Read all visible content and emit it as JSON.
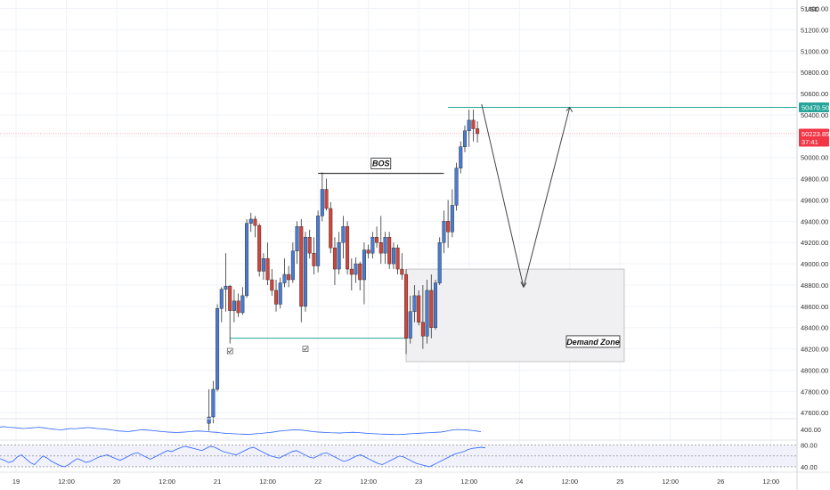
{
  "currency": "USD",
  "chart_data": {
    "type": "candlestick",
    "price_ticks": [
      47600,
      47800,
      48000,
      48200,
      48400,
      48600,
      48800,
      49000,
      49200,
      49400,
      49600,
      49800,
      50000,
      50200,
      50400,
      50600,
      50800,
      51000,
      51200,
      51400
    ],
    "price_tick_labels": [
      "47600.00",
      "47800.00",
      "48000.00",
      "48200.00",
      "48400.00",
      "48600.00",
      "48800.00",
      "49000.00",
      "49200.00",
      "49400.00",
      "49600.00",
      "49800.00",
      "50000.00",
      "50200.00",
      "50400.00",
      "50600.00",
      "50800.00",
      "51000.00",
      "51200.00",
      "51400.00"
    ],
    "ylim": [
      47560,
      51480
    ],
    "time_ticks": [
      {
        "label": "19",
        "t": 0
      },
      {
        "label": "12:00",
        "t": 6
      },
      {
        "label": "20",
        "t": 12
      },
      {
        "label": "12:00",
        "t": 18
      },
      {
        "label": "21",
        "t": 24
      },
      {
        "label": "12:00",
        "t": 30
      },
      {
        "label": "22",
        "t": 36
      },
      {
        "label": "12:00",
        "t": 42
      },
      {
        "label": "23",
        "t": 48
      },
      {
        "label": "12:00",
        "t": 54
      },
      {
        "label": "24",
        "t": 60
      },
      {
        "label": "12:00",
        "t": 66
      },
      {
        "label": "25",
        "t": 72
      },
      {
        "label": "12:00",
        "t": 78
      },
      {
        "label": "26",
        "t": 84
      },
      {
        "label": "12:00",
        "t": 90
      }
    ],
    "candles": [
      [
        23.0,
        47500,
        47820,
        47430,
        47560
      ],
      [
        23.5,
        47560,
        47900,
        47500,
        47820
      ],
      [
        24.0,
        47820,
        48620,
        47800,
        48580
      ],
      [
        24.5,
        48580,
        48780,
        48450,
        48760
      ],
      [
        25.0,
        48760,
        49100,
        48550,
        48790
      ],
      [
        25.5,
        48790,
        48800,
        48250,
        48560
      ],
      [
        26.0,
        48560,
        48760,
        48450,
        48650
      ],
      [
        26.5,
        48650,
        48720,
        48500,
        48540
      ],
      [
        27.0,
        48540,
        48780,
        48520,
        48700
      ],
      [
        27.5,
        48700,
        49420,
        48680,
        49380
      ],
      [
        28.0,
        49380,
        49480,
        49300,
        49420
      ],
      [
        28.5,
        49420,
        49450,
        49250,
        49360
      ],
      [
        29.0,
        49360,
        49380,
        48880,
        48930
      ],
      [
        29.5,
        48930,
        49100,
        48850,
        49050
      ],
      [
        30.0,
        49050,
        49200,
        48800,
        48850
      ],
      [
        30.5,
        48850,
        48950,
        48700,
        48750
      ],
      [
        31.0,
        48750,
        48850,
        48550,
        48620
      ],
      [
        31.5,
        48620,
        48870,
        48580,
        48820
      ],
      [
        32.0,
        48820,
        49050,
        48780,
        48900
      ],
      [
        32.5,
        48900,
        48980,
        48780,
        48850
      ],
      [
        33.0,
        48850,
        49200,
        48820,
        49120
      ],
      [
        33.5,
        49120,
        49400,
        49000,
        49350
      ],
      [
        34.0,
        49350,
        49420,
        48450,
        48600
      ],
      [
        34.5,
        48600,
        49300,
        48550,
        49250
      ],
      [
        35.0,
        49250,
        49320,
        49050,
        49100
      ],
      [
        35.5,
        49100,
        49250,
        48900,
        48980
      ],
      [
        36.0,
        48980,
        49500,
        48920,
        49450
      ],
      [
        36.5,
        49450,
        49860,
        49400,
        49700
      ],
      [
        37.0,
        49700,
        49800,
        49500,
        49520
      ],
      [
        37.5,
        49520,
        49580,
        49100,
        49150
      ],
      [
        38.0,
        49150,
        49250,
        48800,
        48950
      ],
      [
        38.5,
        48950,
        49300,
        48900,
        49200
      ],
      [
        39.0,
        49200,
        49450,
        49050,
        49350
      ],
      [
        39.5,
        49350,
        49400,
        48900,
        48950
      ],
      [
        40.0,
        48950,
        49050,
        48750,
        48900
      ],
      [
        40.5,
        48900,
        49060,
        48820,
        49000
      ],
      [
        41.0,
        49000,
        49020,
        48750,
        48850
      ],
      [
        41.5,
        48850,
        49200,
        48620,
        49130
      ],
      [
        42.0,
        49130,
        49180,
        49050,
        49100
      ],
      [
        42.5,
        49100,
        49300,
        49050,
        49250
      ],
      [
        43.0,
        49250,
        49350,
        49150,
        49200
      ],
      [
        43.5,
        49200,
        49450,
        49000,
        49100
      ],
      [
        44.0,
        49100,
        49300,
        49000,
        49250
      ],
      [
        44.5,
        49250,
        49300,
        48950,
        49000
      ],
      [
        45.0,
        49000,
        49200,
        48950,
        49150
      ],
      [
        45.5,
        49150,
        49180,
        48900,
        48950
      ],
      [
        46.0,
        48950,
        49100,
        48850,
        48900
      ],
      [
        46.5,
        48900,
        48950,
        48150,
        48300
      ],
      [
        47.0,
        48300,
        48700,
        48250,
        48550
      ],
      [
        47.5,
        48550,
        48800,
        48450,
        48700
      ],
      [
        48.0,
        48700,
        48750,
        48420,
        48450
      ],
      [
        48.5,
        48450,
        48800,
        48200,
        48320
      ],
      [
        49.0,
        48320,
        48850,
        48250,
        48750
      ],
      [
        49.5,
        48750,
        48900,
        48300,
        48400
      ],
      [
        50.0,
        48400,
        48850,
        48380,
        48820
      ],
      [
        50.5,
        48820,
        49250,
        48800,
        49200
      ],
      [
        51.0,
        49200,
        49500,
        49100,
        49400
      ],
      [
        51.5,
        49400,
        49600,
        49150,
        49300
      ],
      [
        52.0,
        49300,
        49700,
        49250,
        49550
      ],
      [
        52.5,
        49550,
        49950,
        49500,
        49900
      ],
      [
        53.0,
        49900,
        50150,
        49850,
        50100
      ],
      [
        53.5,
        50100,
        50300,
        50050,
        50250
      ],
      [
        54.0,
        50250,
        50450,
        50100,
        50350
      ],
      [
        54.5,
        50350,
        50450,
        50150,
        50270
      ],
      [
        55.0,
        50270,
        50340,
        50140,
        50224
      ]
    ],
    "levels": [
      {
        "name": "resistance",
        "price": 50470.5,
        "label": "50470.50",
        "color": "#26a69a"
      },
      {
        "name": "current",
        "price": 50223.85,
        "label": "50223.85",
        "sublabel": "37:41",
        "color": "#f23645"
      },
      {
        "name": "support",
        "price": 48300,
        "t_start": 25.5,
        "t_end": 46.5,
        "color": "#26a69a"
      }
    ],
    "bos": {
      "label": "BOS",
      "price": 49850,
      "t_start": 36,
      "t_end": 51
    },
    "demand_zone": {
      "label": "Demand Zone",
      "t_start": 46.5,
      "t_end": 72.5,
      "price_top": 48950,
      "price_bottom": 48080
    },
    "projection_path": [
      [
        55.5,
        50500
      ],
      [
        60.5,
        48780
      ],
      [
        66,
        50470
      ]
    ],
    "checkmarks": [
      {
        "t": 25.5,
        "price": 48180
      },
      {
        "t": 34.5,
        "price": 48200
      }
    ],
    "indicator1": {
      "ticks": [
        {
          "label": "400.00"
        }
      ],
      "values": [
        0.62,
        0.65,
        0.6,
        0.58,
        0.55,
        0.5,
        0.52,
        0.55,
        0.58,
        0.6,
        0.55,
        0.5,
        0.45,
        0.42,
        0.4,
        0.45,
        0.5,
        0.48,
        0.52,
        0.55,
        0.58,
        0.55,
        0.5,
        0.48,
        0.45,
        0.4,
        0.35,
        0.3,
        0.28,
        0.25,
        0.3,
        0.35,
        0.4,
        0.38,
        0.36,
        0.32,
        0.28,
        0.25,
        0.22,
        0.2,
        0.18,
        0.2,
        0.22,
        0.25,
        0.28,
        0.3,
        0.28,
        0.25,
        0.22,
        0.2,
        0.15,
        0.12,
        0.1,
        0.08,
        0.06,
        0.05,
        0.04,
        0.05,
        0.08,
        0.1,
        0.14,
        0.18,
        0.22,
        0.28,
        0.32,
        0.35,
        0.38,
        0.4,
        0.38,
        0.35,
        0.3,
        0.25,
        0.22,
        0.2,
        0.18,
        0.16,
        0.15,
        0.14,
        0.16,
        0.18,
        0.2,
        0.18,
        0.15,
        0.12,
        0.1,
        0.08,
        0.06,
        0.05,
        0.04,
        0.03,
        0.02,
        0.03,
        0.05,
        0.08,
        0.1,
        0.12,
        0.14,
        0.16,
        0.18,
        0.2,
        0.22,
        0.28,
        0.35,
        0.4,
        0.42,
        0.4,
        0.38,
        0.35,
        0.3,
        0.25
      ]
    },
    "indicator2": {
      "ticks": [
        {
          "label": "80.00",
          "value": 80
        },
        {
          "label": "40.00",
          "value": 40
        }
      ],
      "bands": [
        80,
        60,
        40
      ],
      "ylim": [
        30,
        86
      ],
      "values": [
        55,
        52,
        48,
        50,
        58,
        62,
        55,
        48,
        44,
        52,
        60,
        56,
        50,
        46,
        42,
        40,
        44,
        50,
        55,
        52,
        48,
        50,
        54,
        58,
        60,
        62,
        58,
        55,
        52,
        56,
        60,
        64,
        66,
        62,
        58,
        54,
        58,
        62,
        66,
        70,
        68,
        72,
        75,
        78,
        76,
        74,
        72,
        70,
        74,
        78,
        76,
        72,
        68,
        66,
        64,
        62,
        66,
        70,
        74,
        76,
        72,
        68,
        64,
        60,
        58,
        56,
        60,
        64,
        68,
        70,
        66,
        62,
        58,
        56,
        60,
        64,
        66,
        62,
        58,
        54,
        50,
        52,
        56,
        60,
        62,
        58,
        54,
        50,
        46,
        44,
        48,
        52,
        56,
        60,
        58,
        54,
        50,
        46,
        44,
        42,
        40,
        44,
        48,
        52,
        56,
        60,
        64,
        66,
        68,
        72,
        74,
        75,
        76,
        75
      ]
    }
  }
}
